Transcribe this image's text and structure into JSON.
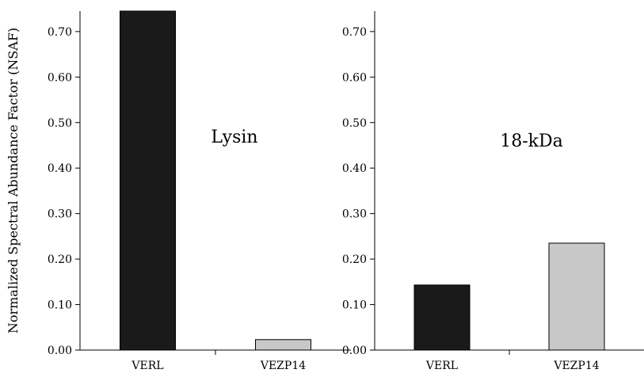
{
  "chart_data": [
    {
      "type": "bar",
      "categories": [
        "VERL",
        "VEZP14"
      ],
      "values": [
        0.745,
        0.023
      ],
      "colors": [
        "#1a1a1a",
        "#c8c8c8"
      ],
      "annotation": "Lysin",
      "ylabel": "Normalized Spectral Abundance Factor (NSAF)",
      "ylim": [
        0,
        0.745
      ],
      "yticks": [
        0.0,
        0.1,
        0.2,
        0.3,
        0.4,
        0.5,
        0.6,
        0.7
      ],
      "ytick_labels": [
        "0.00",
        "0.10",
        "0.20",
        "0.30",
        "0.40",
        "0.50",
        "0.60",
        "0.70"
      ],
      "grid": false
    },
    {
      "type": "bar",
      "categories": [
        "VERL",
        "VEZP14"
      ],
      "values": [
        0.143,
        0.235
      ],
      "colors": [
        "#1a1a1a",
        "#c8c8c8"
      ],
      "annotation": "18-kDa",
      "ylabel": "",
      "ylim": [
        0,
        0.745
      ],
      "yticks": [
        0.0,
        0.1,
        0.2,
        0.3,
        0.4,
        0.5,
        0.6,
        0.7
      ],
      "ytick_labels": [
        "0.00",
        "0.10",
        "0.20",
        "0.30",
        "0.40",
        "0.50",
        "0.60",
        "0.70"
      ],
      "grid": false
    }
  ]
}
